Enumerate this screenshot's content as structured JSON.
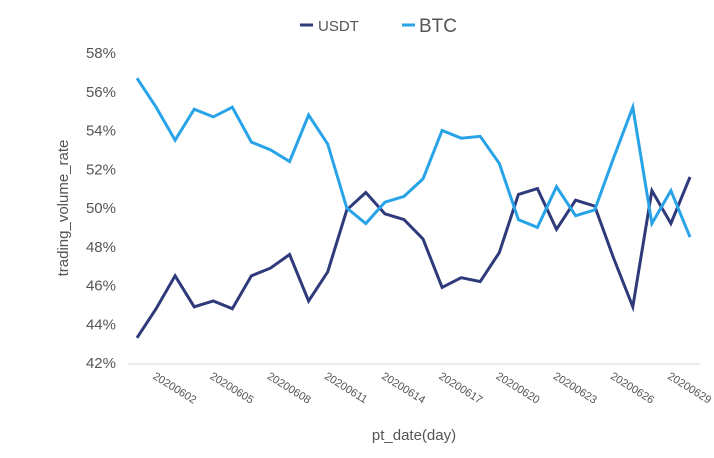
{
  "chart_data": {
    "type": "line",
    "xlabel": "pt_date(day)",
    "ylabel": "trading_volume_rate",
    "ylim": [
      0.42,
      0.58
    ],
    "yticks": [
      "42%",
      "44%",
      "46%",
      "48%",
      "50%",
      "52%",
      "54%",
      "56%",
      "58%"
    ],
    "xtick_labels": [
      "20200602",
      "20200605",
      "20200608",
      "20200611",
      "20200614",
      "20200617",
      "20200620",
      "20200623",
      "20200626",
      "20200629"
    ],
    "x": [
      "20200601",
      "20200602",
      "20200603",
      "20200604",
      "20200605",
      "20200606",
      "20200607",
      "20200608",
      "20200609",
      "20200610",
      "20200611",
      "20200612",
      "20200613",
      "20200614",
      "20200615",
      "20200616",
      "20200617",
      "20200618",
      "20200619",
      "20200620",
      "20200621",
      "20200622",
      "20200623",
      "20200624",
      "20200625",
      "20200626",
      "20200627",
      "20200628",
      "20200629",
      "20200630"
    ],
    "legend_position": "top",
    "series": [
      {
        "name": "USDT",
        "color": "#2e3a7a",
        "values": [
          0.433,
          0.448,
          0.465,
          0.449,
          0.452,
          0.448,
          0.465,
          0.469,
          0.476,
          0.452,
          0.467,
          0.499,
          0.508,
          0.497,
          0.494,
          0.484,
          0.459,
          0.464,
          0.462,
          0.477,
          0.507,
          0.51,
          0.489,
          0.504,
          0.501,
          0.474,
          0.449,
          0.509,
          0.492,
          0.516
        ]
      },
      {
        "name": "BTC",
        "color": "#29a3e8",
        "values": [
          0.567,
          0.552,
          0.535,
          0.551,
          0.547,
          0.552,
          0.534,
          0.53,
          0.524,
          0.548,
          0.533,
          0.5,
          0.492,
          0.503,
          0.506,
          0.515,
          0.54,
          0.536,
          0.537,
          0.523,
          0.494,
          0.49,
          0.511,
          0.496,
          0.499,
          0.526,
          0.552,
          0.492,
          0.509,
          0.485
        ]
      }
    ]
  }
}
